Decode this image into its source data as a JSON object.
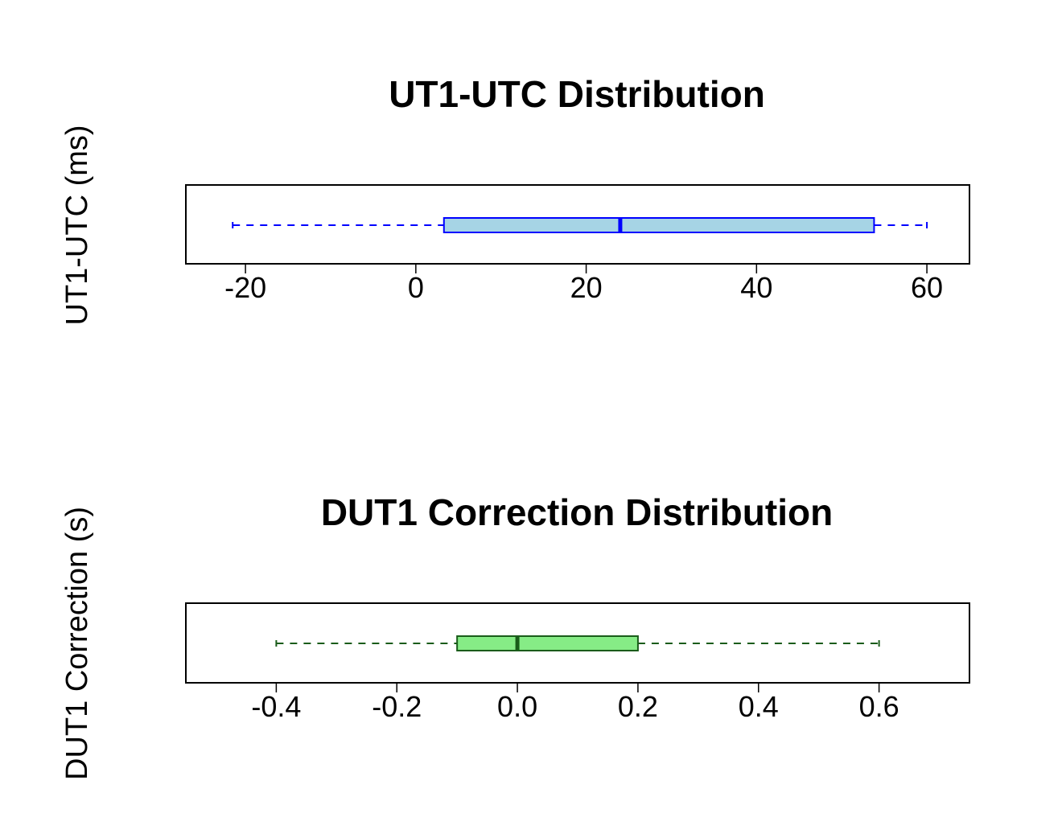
{
  "chart_data": [
    {
      "type": "boxplot",
      "orientation": "horizontal",
      "title": "UT1-UTC Distribution",
      "ylabel": "UT1-UTC (ms)",
      "xlim": [
        -27,
        65
      ],
      "ticks": [
        -20,
        0,
        20,
        40,
        60
      ],
      "tick_labels": [
        "-20",
        "0",
        "20",
        "40",
        "60"
      ],
      "box": {
        "whisker_low": -21.5,
        "q1": 3.3,
        "median": 24,
        "q3": 53.8,
        "whisker_high": 60
      },
      "colors": {
        "fill": "#a6d4e5",
        "line": "#0000ff"
      }
    },
    {
      "type": "boxplot",
      "orientation": "horizontal",
      "title": "DUT1 Correction Distribution",
      "ylabel": "DUT1 Correction (s)",
      "xlim": [
        -0.55,
        0.75
      ],
      "ticks": [
        -0.4,
        -0.2,
        0.0,
        0.2,
        0.4,
        0.6
      ],
      "tick_labels": [
        "-0.4",
        "-0.2",
        "0.0",
        "0.2",
        "0.4",
        "0.6"
      ],
      "box": {
        "whisker_low": -0.4,
        "q1": -0.1,
        "median": 0.0,
        "q3": 0.2,
        "whisker_high": 0.6
      },
      "colors": {
        "fill": "#86ec86",
        "line": "#1a5c1a"
      }
    }
  ]
}
